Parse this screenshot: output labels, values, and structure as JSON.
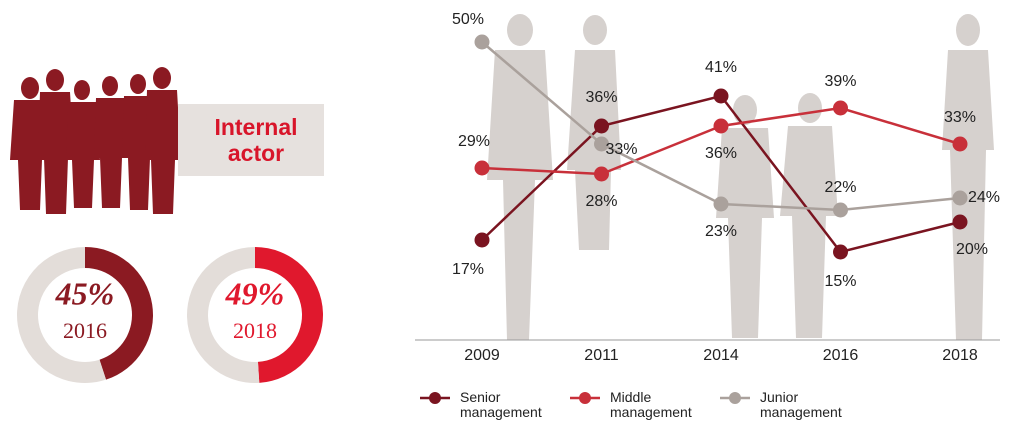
{
  "badge": "Internal actor",
  "chart_data": [
    {
      "type": "line",
      "categories": [
        "2009",
        "2011",
        "2014",
        "2016",
        "2018"
      ],
      "ylim": [
        0,
        50
      ],
      "series": [
        {
          "name": "Senior management",
          "color": "#7a1420",
          "values": [
            17,
            36,
            41,
            15,
            20
          ],
          "value_labels": [
            "17%",
            "36%",
            "41%",
            "15%",
            "20%"
          ]
        },
        {
          "name": "Middle management",
          "color": "#c8303a",
          "values": [
            29,
            28,
            36,
            39,
            33
          ],
          "value_labels": [
            "29%",
            "28%",
            "36%",
            "39%",
            "33%"
          ]
        },
        {
          "name": "Junior management",
          "color": "#aaa19c",
          "values": [
            50,
            33,
            23,
            22,
            24
          ],
          "value_labels": [
            "50%",
            "33%",
            "23%",
            "22%",
            "24%"
          ]
        }
      ]
    },
    {
      "type": "donut",
      "title": "2016",
      "values": [
        45,
        55
      ],
      "value_labels": [
        "45%",
        null
      ],
      "colors": [
        "#8b1a22",
        "#e3ddd9"
      ]
    },
    {
      "type": "donut",
      "title": "2018",
      "values": [
        49,
        51
      ],
      "value_labels": [
        "49%",
        null
      ],
      "colors": [
        "#e0182d",
        "#e3ddd9"
      ]
    }
  ]
}
